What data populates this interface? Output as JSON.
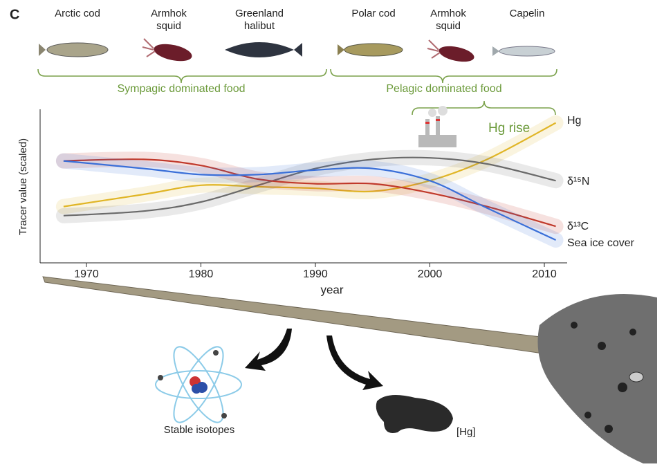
{
  "chart_data": {
    "type": "line",
    "panel": "C",
    "species": [
      [
        "Arctic cod"
      ],
      [
        "Armhok",
        "squid"
      ],
      [
        "Greenland",
        "halibut"
      ],
      [
        "Polar cod"
      ],
      [
        "Armhok",
        "squid"
      ],
      [
        "Capelin"
      ]
    ],
    "groups": [
      "Sympagic dominated food",
      "Pelagic dominated food"
    ],
    "annotations": [
      "Hg rise"
    ],
    "x_label": "year",
    "y_label": "Tracer value (scaled)",
    "x": [
      1968,
      1975,
      1980,
      1985,
      1990,
      1995,
      2000,
      2005,
      2011
    ],
    "xlim": [
      1966,
      2012
    ],
    "xticks": [
      1970,
      1980,
      1990,
      2000,
      2010
    ],
    "ylim": [
      0,
      1
    ],
    "series": [
      {
        "name": "Hg",
        "color": "#e0b526",
        "values": [
          0.37,
          0.45,
          0.51,
          0.5,
          0.49,
          0.47,
          0.54,
          0.68,
          0.92
        ]
      },
      {
        "name": "δ¹⁵N",
        "color": "#6a6a6a",
        "values": [
          0.31,
          0.34,
          0.4,
          0.51,
          0.62,
          0.68,
          0.69,
          0.65,
          0.54
        ]
      },
      {
        "name": "δ¹³C",
        "color": "#c0392b",
        "values": [
          0.67,
          0.68,
          0.64,
          0.55,
          0.52,
          0.52,
          0.46,
          0.37,
          0.24
        ]
      },
      {
        "name": "Sea ice cover",
        "color": "#3a6fd8",
        "values": [
          0.67,
          0.62,
          0.58,
          0.58,
          0.61,
          0.62,
          0.54,
          0.36,
          0.15
        ]
      }
    ],
    "illustration_labels": [
      "Stable isotopes",
      "[Hg]"
    ]
  }
}
